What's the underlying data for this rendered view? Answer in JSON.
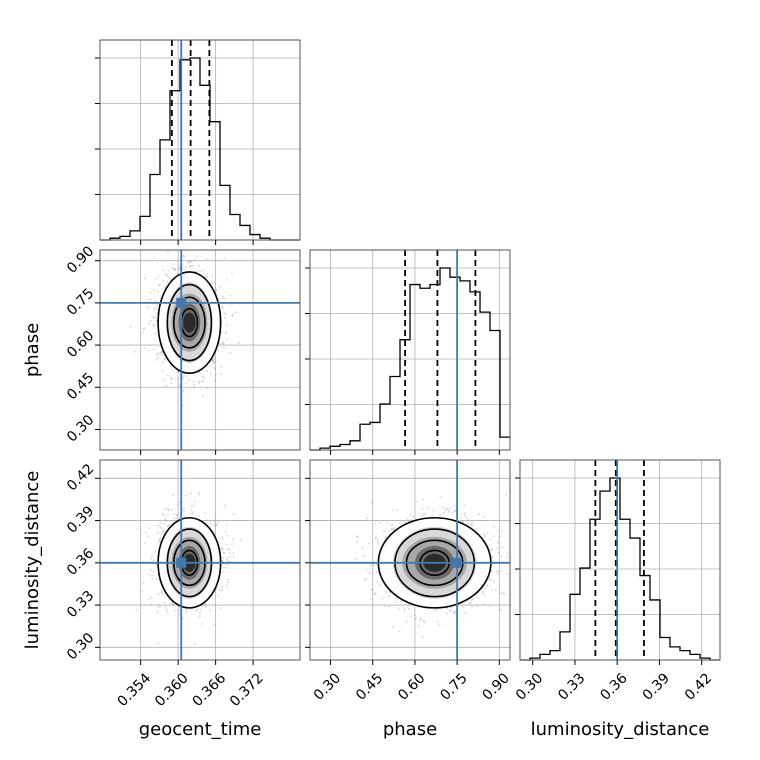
{
  "chart_data": {
    "type": "corner",
    "parameters": [
      "geocent_time",
      "phase",
      "luminosity_distance"
    ],
    "axis_labels": {
      "geocent_time": "geocent_time",
      "phase": "phase",
      "luminosity_distance": "luminosity_distance"
    },
    "ranges": {
      "geocent_time": [
        0.3475,
        0.3795
      ],
      "phase": [
        0.227,
        0.938
      ],
      "luminosity_distance": [
        0.291,
        0.433
      ]
    },
    "ticks": {
      "geocent_time": [
        "0.354",
        "0.360",
        "0.366",
        "0.372"
      ],
      "phase": [
        "0.30",
        "0.45",
        "0.60",
        "0.75",
        "0.90"
      ],
      "luminosity_distance": [
        "0.30",
        "0.33",
        "0.36",
        "0.39",
        "0.42"
      ]
    },
    "truths": {
      "geocent_time": 0.3605,
      "phase": 0.75,
      "luminosity_distance": 0.36
    },
    "quantiles": {
      "geocent_time": [
        0.359,
        0.362,
        0.365
      ],
      "phase": [
        0.565,
        0.68,
        0.815
      ],
      "luminosity_distance": [
        0.3445,
        0.359,
        0.379
      ]
    },
    "histograms": {
      "geocent_time": {
        "edges": [
          0.3475,
          0.3491,
          0.3507,
          0.3523,
          0.3539,
          0.3555,
          0.3571,
          0.3587,
          0.3603,
          0.3619,
          0.3635,
          0.3651,
          0.3667,
          0.3683,
          0.3699,
          0.3715,
          0.3731,
          0.3747,
          0.3763,
          0.3779,
          0.3795
        ],
        "counts": [
          0,
          1,
          2,
          5,
          13,
          36,
          55,
          82,
          99,
          100,
          85,
          65,
          30,
          14,
          8,
          3,
          1,
          0,
          0,
          0
        ]
      },
      "phase": {
        "edges": [
          0.227,
          0.2626,
          0.2981,
          0.3337,
          0.3692,
          0.4048,
          0.4403,
          0.4759,
          0.5114,
          0.547,
          0.5825,
          0.6181,
          0.6536,
          0.6892,
          0.7247,
          0.7603,
          0.7958,
          0.8314,
          0.8669,
          0.9025,
          0.938
        ],
        "counts": [
          0,
          1,
          2,
          3,
          5,
          14,
          15,
          25,
          40,
          60,
          90,
          88,
          90,
          99,
          94,
          92,
          86,
          75,
          65,
          7
        ]
      },
      "luminosity_distance": {
        "edges": [
          0.291,
          0.2981,
          0.3052,
          0.3123,
          0.3194,
          0.3265,
          0.3336,
          0.3407,
          0.3478,
          0.3549,
          0.362,
          0.3691,
          0.3762,
          0.3833,
          0.3904,
          0.3975,
          0.4046,
          0.4117,
          0.4188,
          0.4259,
          0.433
        ],
        "counts": [
          0,
          1,
          3,
          5,
          15,
          35,
          49,
          75,
          90,
          97,
          75,
          65,
          45,
          32,
          12,
          7,
          5,
          3,
          1,
          0
        ]
      }
    },
    "posteriors_2d": [
      {
        "x": "geocent_time",
        "y": "phase",
        "mean": [
          0.3618,
          0.68
        ],
        "sd": [
          0.0025,
          0.09
        ]
      },
      {
        "x": "geocent_time",
        "y": "luminosity_distance",
        "mean": [
          0.3618,
          0.36
        ],
        "sd": [
          0.0025,
          0.016
        ]
      },
      {
        "x": "phase",
        "y": "luminosity_distance",
        "mean": [
          0.67,
          0.36
        ],
        "sd": [
          0.1,
          0.016
        ]
      }
    ],
    "grid": true,
    "colors": {
      "truth": "#4477aa",
      "hist": "#000000",
      "points": "#999999",
      "grid": "#b0b0b0"
    }
  }
}
